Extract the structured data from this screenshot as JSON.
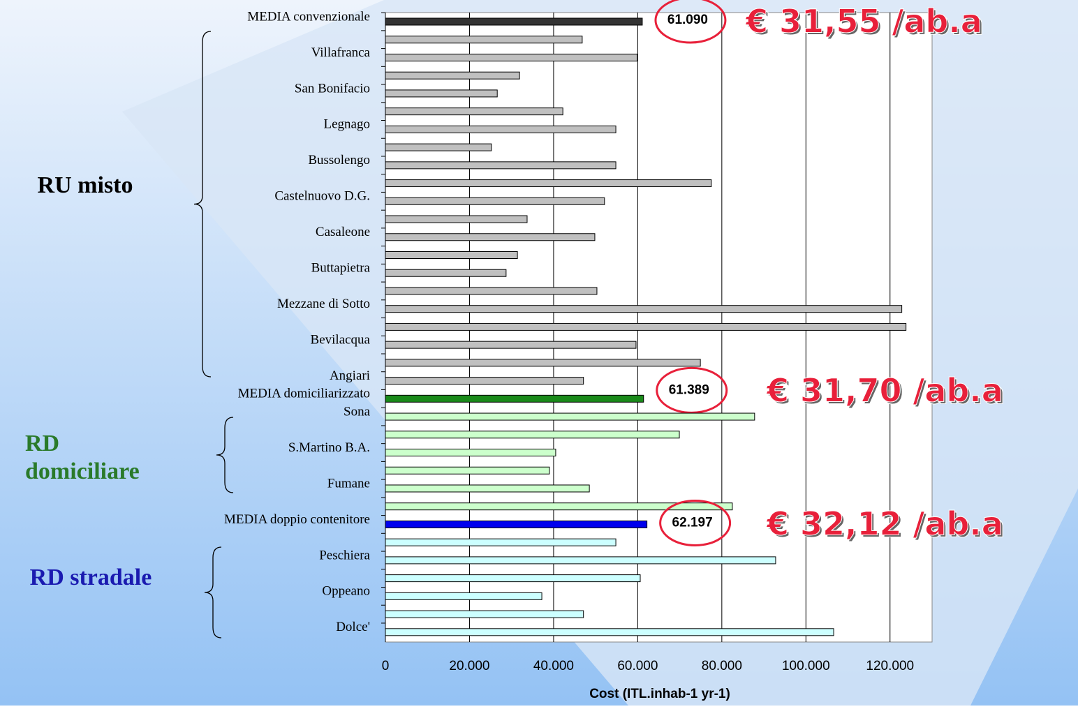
{
  "chart_data": {
    "type": "bar",
    "orientation": "horizontal",
    "categories": [
      "MEDIA convenzionale",
      null,
      "Villafranca",
      null,
      "San Bonifacio",
      null,
      "Legnago",
      null,
      "Bussolengo",
      null,
      "Castelnuovo D.G.",
      null,
      "Casaleone",
      null,
      "Buttapietra",
      null,
      "Mezzane di Sotto",
      null,
      "Bevilacqua",
      null,
      "Angiari",
      "MEDIA domiciliarizzato",
      "Sona",
      null,
      "S.Martino B.A.",
      null,
      "Fumane",
      null,
      "MEDIA doppio contenitore",
      null,
      "Peschiera",
      null,
      "Oppeano",
      null,
      "Dolce'"
    ],
    "values": [
      61090,
      46800,
      59900,
      31900,
      26600,
      42200,
      54800,
      25200,
      54800,
      77500,
      52100,
      33700,
      49800,
      31400,
      28700,
      50300,
      122800,
      123800,
      59600,
      74900,
      47100,
      61389,
      87800,
      69900,
      40500,
      39000,
      48500,
      82500,
      62197,
      54800,
      92800,
      60600,
      37200,
      47100,
      106600
    ],
    "value_labels": [
      "61.090",
      null,
      null,
      null,
      null,
      null,
      null,
      null,
      null,
      null,
      null,
      null,
      null,
      null,
      null,
      null,
      null,
      null,
      null,
      null,
      null,
      "61.389",
      null,
      null,
      null,
      null,
      null,
      null,
      "62.197",
      null,
      null,
      null,
      null,
      null,
      null
    ],
    "colors": [
      "#333333",
      "#c0c0c0",
      "#c0c0c0",
      "#c0c0c0",
      "#c0c0c0",
      "#c0c0c0",
      "#c0c0c0",
      "#c0c0c0",
      "#c0c0c0",
      "#c0c0c0",
      "#c0c0c0",
      "#c0c0c0",
      "#c0c0c0",
      "#c0c0c0",
      "#c0c0c0",
      "#c0c0c0",
      "#c0c0c0",
      "#c0c0c0",
      "#c0c0c0",
      "#c0c0c0",
      "#c0c0c0",
      "#1a8a1a",
      "#ccffcc",
      "#ccffcc",
      "#ccffcc",
      "#ccffcc",
      "#ccffcc",
      "#ccffcc",
      "#0000ee",
      "#ccffff",
      "#ccffff",
      "#ccffff",
      "#ccffff",
      "#ccffff",
      "#ccffff"
    ],
    "xlabel": "Cost  (ITL.inhab-1 yr-1)",
    "xlim": [
      0,
      130000
    ],
    "xticks": [
      0,
      {
        "value": 20000,
        "label": "20.000"
      },
      {
        "value": 40000,
        "label": "40.000"
      },
      {
        "value": 60000,
        "label": "60.000"
      },
      {
        "value": 80000,
        "label": "80.000"
      },
      {
        "value": 100000,
        "label": "100.000"
      },
      {
        "value": 120000,
        "label": "120.000"
      }
    ],
    "grid": true,
    "annotations": [
      "€ 31,55 /ab.a",
      "€ 31,70 /ab.a",
      "€ 32,12 /ab.a"
    ],
    "groups": [
      {
        "label": "RU misto",
        "color": "#000000"
      },
      {
        "label": "RD domiciliare",
        "color": "#2a7a2a"
      },
      {
        "label": "RD stradale",
        "color": "#1a1ab0"
      }
    ]
  }
}
